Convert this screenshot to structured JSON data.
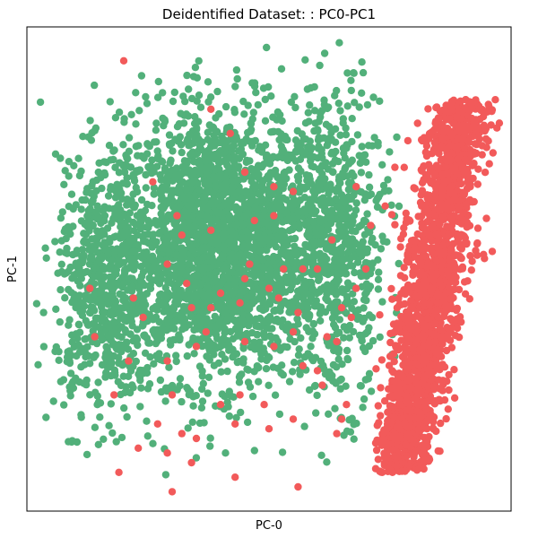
{
  "chart_data": {
    "type": "scatter",
    "title": "Deidentified Dataset: : PC0-PC1",
    "xlabel": "PC-0",
    "ylabel": "PC-1",
    "xlim": [
      0,
      100
    ],
    "ylim": [
      0,
      100
    ],
    "xticks_visible": false,
    "yticks_visible": false,
    "grid": false,
    "legend": "none",
    "series": [
      {
        "color": "#52b07a",
        "clusters": [
          {
            "cx": 40,
            "cy": 55,
            "sx": 11,
            "sy": 14,
            "n": 2600,
            "xmin": 2,
            "xmax": 78,
            "ymin": 2,
            "ymax": 98
          },
          {
            "cx": 16,
            "cy": 45,
            "sx": 5,
            "sy": 13,
            "n": 600,
            "xmin": 2,
            "xmax": 40,
            "ymin": 10,
            "ymax": 92
          },
          {
            "cx": 64,
            "cy": 55,
            "sx": 5,
            "sy": 16,
            "n": 600,
            "xmin": 40,
            "xmax": 80,
            "ymin": 8,
            "ymax": 97
          }
        ]
      },
      {
        "color": "#f25a5a",
        "band": {
          "x_bottom": 77,
          "x_top": 90,
          "y_bottom": 8,
          "y_top": 85,
          "width_sd": 3.2,
          "n": 1800
        },
        "points": [
          [
            20,
            93
          ],
          [
            38,
            83
          ],
          [
            42,
            78
          ],
          [
            26,
            68
          ],
          [
            45,
            70
          ],
          [
            51,
            67
          ],
          [
            55,
            66
          ],
          [
            51,
            61
          ],
          [
            38,
            58
          ],
          [
            32,
            57
          ],
          [
            29,
            51
          ],
          [
            46,
            51
          ],
          [
            53,
            50
          ],
          [
            50,
            46
          ],
          [
            57,
            50
          ],
          [
            60,
            50
          ],
          [
            52,
            44
          ],
          [
            44,
            43
          ],
          [
            38,
            42
          ],
          [
            34,
            42
          ],
          [
            22,
            44
          ],
          [
            35,
            34
          ],
          [
            29,
            31
          ],
          [
            45,
            35
          ],
          [
            51,
            34
          ],
          [
            62,
            36
          ],
          [
            64,
            35
          ],
          [
            55,
            37
          ],
          [
            30,
            24
          ],
          [
            18,
            24
          ],
          [
            21,
            31
          ],
          [
            14,
            36
          ],
          [
            24,
            40
          ],
          [
            40,
            22
          ],
          [
            44,
            24
          ],
          [
            49,
            22
          ],
          [
            55,
            19
          ],
          [
            50,
            17
          ],
          [
            43,
            18
          ],
          [
            34,
            10
          ],
          [
            35,
            15
          ],
          [
            29,
            12
          ],
          [
            32,
            16
          ],
          [
            19,
            8
          ],
          [
            23,
            13
          ],
          [
            30,
            4
          ],
          [
            56,
            5
          ],
          [
            43,
            7
          ],
          [
            13,
            46
          ],
          [
            65,
            19
          ],
          [
            66,
            22
          ],
          [
            64,
            16
          ],
          [
            61,
            26
          ],
          [
            67,
            40
          ],
          [
            68,
            46
          ],
          [
            70,
            50
          ],
          [
            65,
            42
          ],
          [
            60,
            29
          ],
          [
            57,
            30
          ],
          [
            37,
            37
          ],
          [
            40,
            45
          ],
          [
            45,
            48
          ],
          [
            27,
            18
          ],
          [
            68,
            67
          ],
          [
            63,
            56
          ],
          [
            56,
            41
          ],
          [
            33,
            47
          ],
          [
            31,
            61
          ],
          [
            47,
            60
          ],
          [
            71,
            59
          ],
          [
            74,
            63
          ],
          [
            76,
            71
          ]
        ]
      }
    ]
  }
}
